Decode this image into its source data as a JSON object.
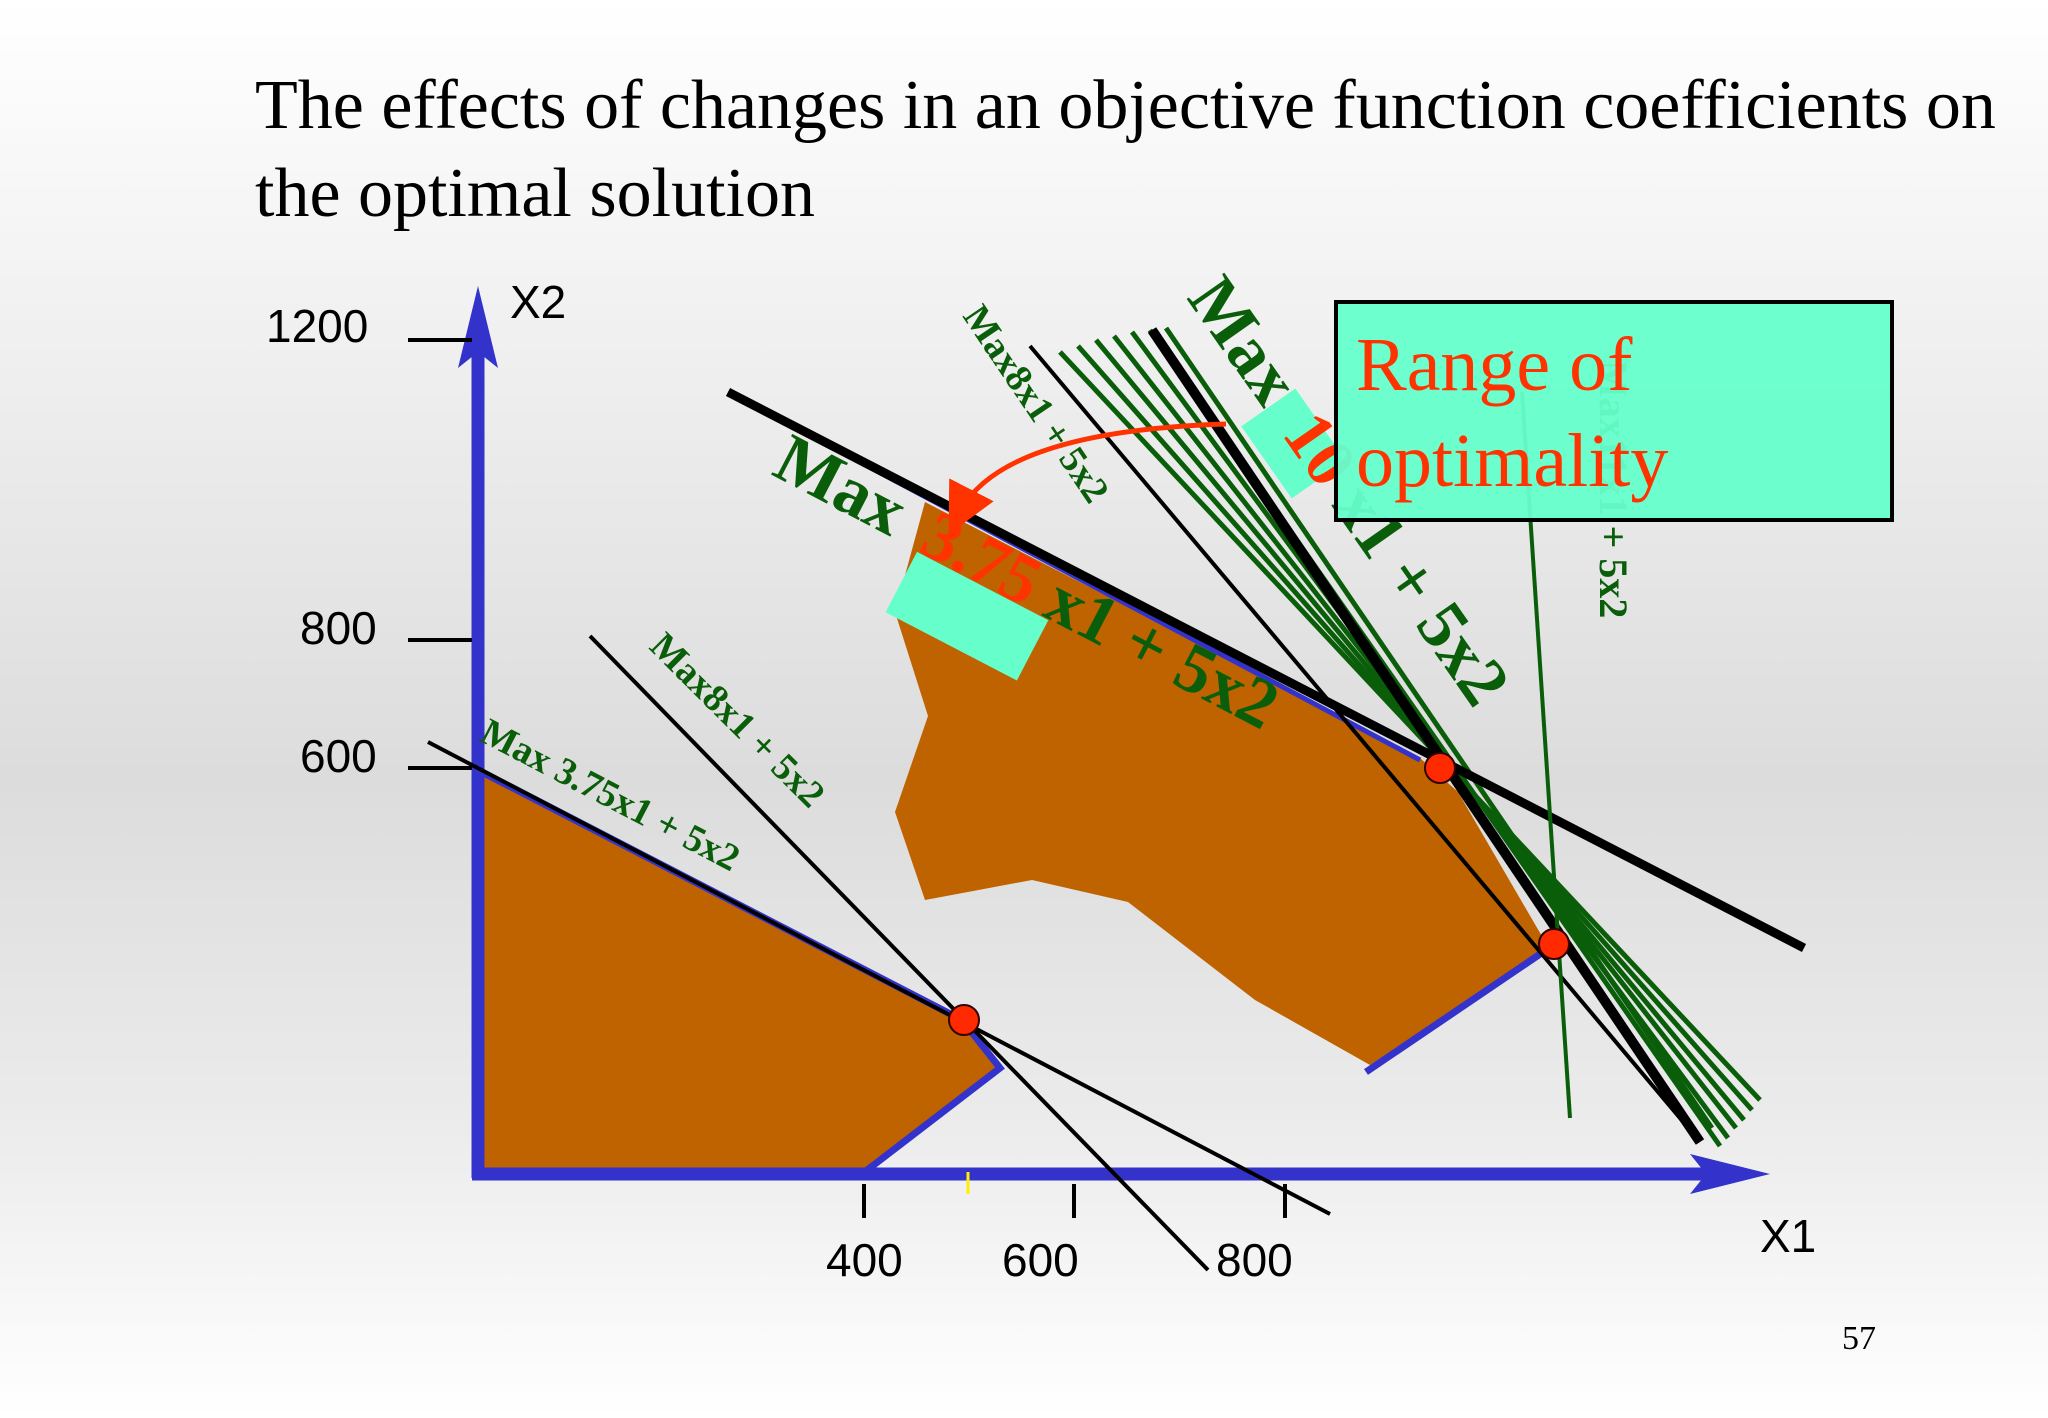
{
  "slide": {
    "title": "The effects of changes in an objective function coefficients on the optimal solution",
    "page_number": "57"
  },
  "axes": {
    "x_name": "X1",
    "y_name": "X2",
    "x_ticks": [
      "400",
      "600",
      "800"
    ],
    "y_ticks": [
      "1200",
      "800",
      "600"
    ]
  },
  "labels": {
    "small_375": "Max 3.75x1 + 5x2",
    "small_8": "Max8x1 + 5x2",
    "top_8": "Max8x1 + 5x2",
    "top_11": "Max11x1 + 5x2",
    "big_375_prefix": "Max",
    "big_375_coef": "3.75",
    "big_375_suffix": "x1 + 5x2",
    "big_10_prefix": "Max",
    "big_10_coef": "10",
    "big_10_suffix": "x1 + 5x2"
  },
  "callout": {
    "line1": "Range of",
    "line2": "optimality"
  },
  "colors": {
    "feasible_region": "#bf6300",
    "axis": "#3333cc",
    "objective_green": "#0a5e0a",
    "highlight": "#66ffcc",
    "emphasis_red": "#ff3300",
    "optimal_point": "#ff2a00"
  }
}
